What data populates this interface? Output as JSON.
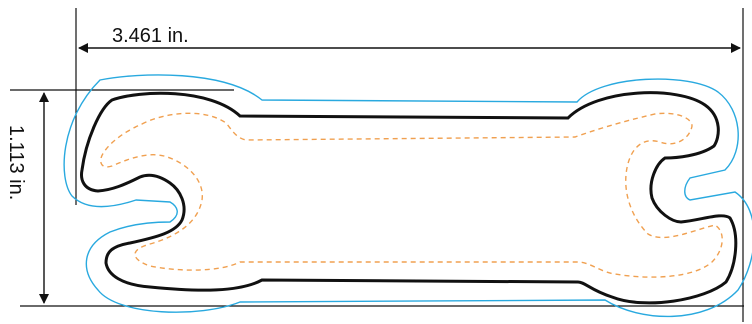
{
  "dimensions": {
    "width_label": "3.461 in.",
    "height_label": "1.113 in."
  },
  "legend_colors": {
    "part_outline": "#111111",
    "outer_offset_path": "#29a9df",
    "inner_offset_path": "#f0a050",
    "dimension_lines": "#111111"
  }
}
